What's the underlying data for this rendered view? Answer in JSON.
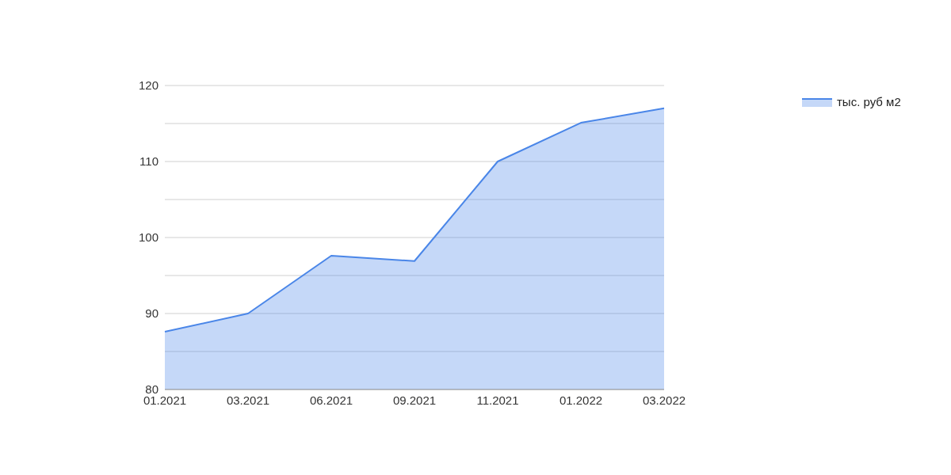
{
  "chart_data": {
    "type": "area",
    "categories": [
      "01.2021",
      "03.2021",
      "06.2021",
      "09.2021",
      "11.2021",
      "01.2022",
      "03.2022"
    ],
    "series": [
      {
        "name": "тыс. руб м2",
        "color": "#4a86e8",
        "values": [
          87.6,
          90,
          97.6,
          96.9,
          110,
          115.1,
          117
        ]
      }
    ],
    "ylim": [
      80,
      120
    ],
    "yticks": [
      80,
      {
        "value": 85,
        "label": null
      },
      90,
      {
        "value": 95,
        "label": null
      },
      100,
      {
        "value": 105,
        "label": null
      },
      110,
      {
        "value": 115,
        "label": null
      },
      120
    ],
    "grid": "y",
    "legend": "top right"
  }
}
